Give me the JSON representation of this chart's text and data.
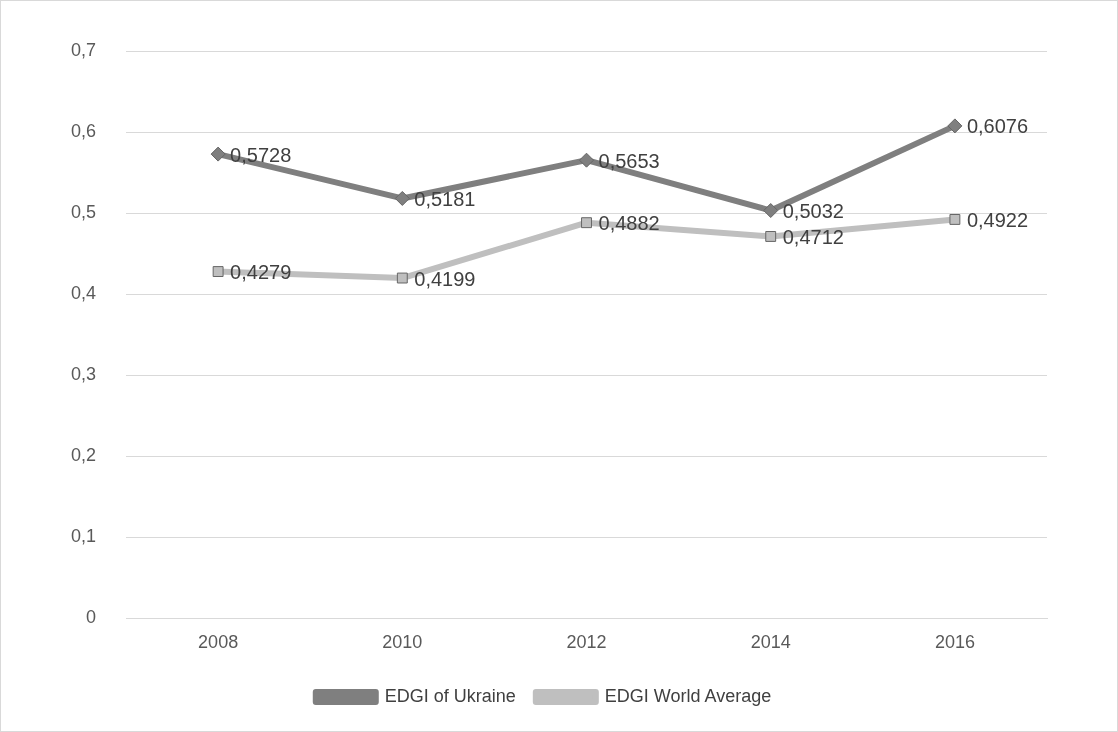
{
  "chart_data": {
    "type": "line",
    "categories": [
      "2008",
      "2010",
      "2012",
      "2014",
      "2016"
    ],
    "series": [
      {
        "name": "EDGI of Ukraine",
        "color": "#7f7f7f",
        "marker": "diamond",
        "values": [
          0.5728,
          0.5181,
          0.5653,
          0.5032,
          0.6076
        ],
        "value_labels": [
          "0,5728",
          "0,5181",
          "0,5653",
          "0,5032",
          "0,6076"
        ]
      },
      {
        "name": "EDGI World Average",
        "color": "#bfbfbf",
        "marker": "square",
        "values": [
          0.4279,
          0.4199,
          0.4882,
          0.4712,
          0.4922
        ],
        "value_labels": [
          "0,4279",
          "0,4199",
          "0,4882",
          "0,4712",
          "0,4922"
        ]
      }
    ],
    "ylim": [
      0,
      0.7
    ],
    "yticks": [
      {
        "value": 0,
        "label": "0"
      },
      {
        "value": 0.1,
        "label": "0,1"
      },
      {
        "value": 0.2,
        "label": "0,2"
      },
      {
        "value": 0.3,
        "label": "0,3"
      },
      {
        "value": 0.4,
        "label": "0,4"
      },
      {
        "value": 0.5,
        "label": "0,5"
      },
      {
        "value": 0.6,
        "label": "0,6"
      },
      {
        "value": 0.7,
        "label": "0,7"
      }
    ],
    "grid": "y",
    "legend": "bottom",
    "line_style": "solid"
  }
}
